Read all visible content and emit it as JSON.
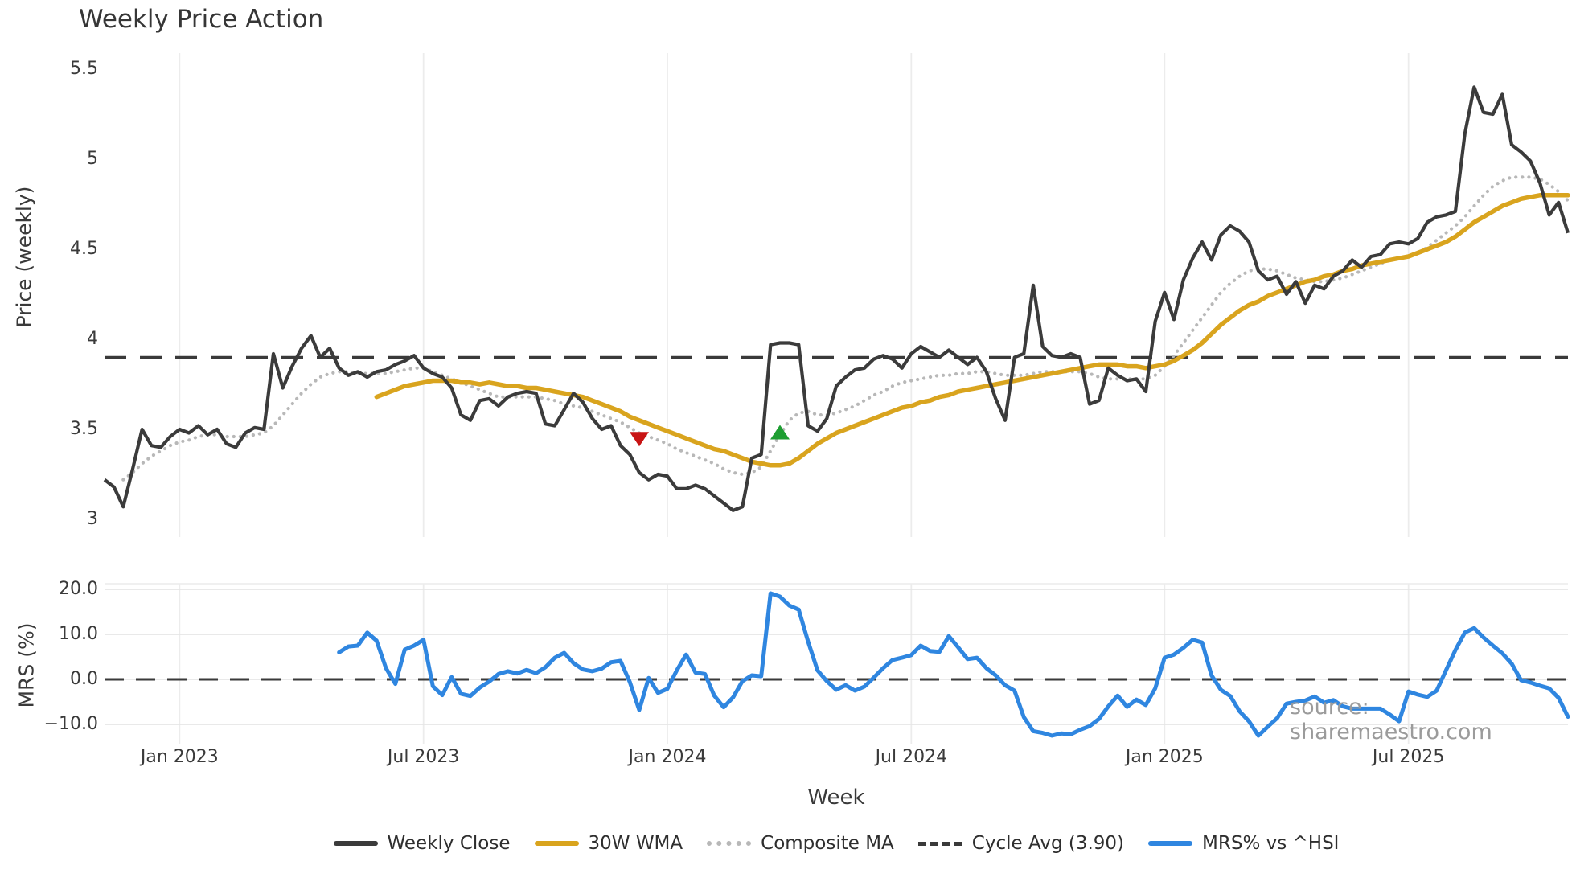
{
  "title": "Weekly Price Action",
  "watermark": "source: sharemaestro.com",
  "axes": {
    "price_ylabel": "Price (weekly)",
    "mrs_ylabel": "MRS (%)",
    "xlabel": "Week"
  },
  "colors": {
    "close": "#3b3b3b",
    "wma": "#d9a41e",
    "composite": "#b8b8b8",
    "cycle": "#3a3a3a",
    "mrs": "#2f86e0",
    "sell": "#c81414",
    "buy": "#1e9e32",
    "grid": "#ececec",
    "grid_h": "#e6e6e6",
    "text": "#3a3a3a",
    "watermark": "#9b9b9b"
  },
  "legend": [
    {
      "label": "Weekly Close",
      "style": "solid",
      "color": "#3b3b3b"
    },
    {
      "label": "30W WMA",
      "style": "solid",
      "color": "#d9a41e"
    },
    {
      "label": "Composite MA",
      "style": "dotted",
      "color": "#b8b8b8"
    },
    {
      "label": "Cycle Avg (3.90)",
      "style": "dashed",
      "color": "#3a3a3a"
    },
    {
      "label": "MRS% vs ^HSI",
      "style": "solid",
      "color": "#2f86e0"
    }
  ],
  "chart_data": [
    {
      "type": "line",
      "panel": "price",
      "title": "Weekly Price Action",
      "ylabel": "Price (weekly)",
      "ylim": [
        2.9,
        5.62
      ],
      "yticks": [
        3,
        3.5,
        4,
        4.5,
        5,
        5.5
      ],
      "ytick_labels": [
        "3",
        "3.5",
        "4",
        "4.5",
        "5",
        "5.5"
      ],
      "x_unit": "weekly, week 0 = first plotted week (Nov 2022)",
      "x_range_weeks": [
        0,
        156
      ],
      "xticks": [
        {
          "week": 8,
          "label": "Jan 2023"
        },
        {
          "week": 34,
          "label": "Jul 2023"
        },
        {
          "week": 60,
          "label": "Jan 2024"
        },
        {
          "week": 86,
          "label": "Jul 2024"
        },
        {
          "week": 113,
          "label": "Jan 2025"
        },
        {
          "week": 139,
          "label": "Jul 2025"
        }
      ],
      "cycle_avg": 3.9,
      "grid": "vertical-light",
      "legend_position": "bottom-center",
      "series": [
        {
          "name": "Weekly Close",
          "start_week": 0,
          "values": [
            3.22,
            3.18,
            3.07,
            3.28,
            3.5,
            3.41,
            3.4,
            3.46,
            3.5,
            3.48,
            3.52,
            3.47,
            3.5,
            3.42,
            3.4,
            3.48,
            3.51,
            3.5,
            3.92,
            3.73,
            3.85,
            3.95,
            4.02,
            3.9,
            3.95,
            3.84,
            3.8,
            3.82,
            3.79,
            3.82,
            3.83,
            3.86,
            3.88,
            3.91,
            3.84,
            3.81,
            3.79,
            3.73,
            3.58,
            3.55,
            3.66,
            3.67,
            3.63,
            3.68,
            3.7,
            3.71,
            3.7,
            3.53,
            3.52,
            3.61,
            3.7,
            3.65,
            3.56,
            3.5,
            3.52,
            3.41,
            3.36,
            3.26,
            3.22,
            3.25,
            3.24,
            3.17,
            3.17,
            3.19,
            3.17,
            3.13,
            3.09,
            3.05,
            3.07,
            3.34,
            3.36,
            3.97,
            3.98,
            3.98,
            3.97,
            3.52,
            3.49,
            3.56,
            3.74,
            3.79,
            3.83,
            3.84,
            3.89,
            3.91,
            3.89,
            3.84,
            3.92,
            3.96,
            3.93,
            3.9,
            3.94,
            3.9,
            3.86,
            3.9,
            3.82,
            3.67,
            3.55,
            3.9,
            3.92,
            4.3,
            3.96,
            3.91,
            3.9,
            3.92,
            3.9,
            3.64,
            3.66,
            3.84,
            3.8,
            3.77,
            3.78,
            3.71,
            4.1,
            4.26,
            4.11,
            4.33,
            4.45,
            4.54,
            4.44,
            4.58,
            4.63,
            4.6,
            4.54,
            4.38,
            4.33,
            4.35,
            4.25,
            4.32,
            4.2,
            4.3,
            4.28,
            4.35,
            4.38,
            4.44,
            4.4,
            4.46,
            4.47,
            4.53,
            4.54,
            4.53,
            4.56,
            4.65,
            4.68,
            4.69,
            4.71,
            5.14,
            5.4,
            5.26,
            5.25,
            5.36,
            5.08,
            5.04,
            4.99,
            4.87,
            4.69,
            4.76,
            4.59
          ]
        },
        {
          "name": "30W WMA",
          "start_week": 29,
          "values": [
            3.68,
            3.7,
            3.72,
            3.74,
            3.75,
            3.76,
            3.77,
            3.77,
            3.77,
            3.76,
            3.76,
            3.75,
            3.76,
            3.75,
            3.74,
            3.74,
            3.73,
            3.73,
            3.72,
            3.71,
            3.7,
            3.69,
            3.68,
            3.66,
            3.64,
            3.62,
            3.6,
            3.57,
            3.55,
            3.53,
            3.51,
            3.49,
            3.47,
            3.45,
            3.43,
            3.41,
            3.39,
            3.38,
            3.36,
            3.34,
            3.32,
            3.31,
            3.3,
            3.3,
            3.31,
            3.34,
            3.38,
            3.42,
            3.45,
            3.48,
            3.5,
            3.52,
            3.54,
            3.56,
            3.58,
            3.6,
            3.62,
            3.63,
            3.65,
            3.66,
            3.68,
            3.69,
            3.71,
            3.72,
            3.73,
            3.74,
            3.75,
            3.76,
            3.77,
            3.78,
            3.79,
            3.8,
            3.81,
            3.82,
            3.83,
            3.84,
            3.85,
            3.86,
            3.86,
            3.86,
            3.85,
            3.85,
            3.84,
            3.85,
            3.86,
            3.88,
            3.91,
            3.94,
            3.98,
            4.03,
            4.08,
            4.12,
            4.16,
            4.19,
            4.21,
            4.24,
            4.26,
            4.28,
            4.3,
            4.32,
            4.33,
            4.35,
            4.36,
            4.38,
            4.39,
            4.41,
            4.42,
            4.43,
            4.44,
            4.45,
            4.46,
            4.48,
            4.5,
            4.52,
            4.54,
            4.57,
            4.61,
            4.65,
            4.68,
            4.71,
            4.74,
            4.76,
            4.78,
            4.79,
            4.8,
            4.8,
            4.8,
            4.8
          ]
        },
        {
          "name": "Composite MA",
          "start_week": 2,
          "values": [
            3.22,
            3.26,
            3.31,
            3.35,
            3.38,
            3.41,
            3.43,
            3.44,
            3.46,
            3.47,
            3.47,
            3.46,
            3.46,
            3.46,
            3.47,
            3.48,
            3.52,
            3.58,
            3.64,
            3.7,
            3.75,
            3.79,
            3.81,
            3.82,
            3.82,
            3.81,
            3.81,
            3.81,
            3.81,
            3.82,
            3.83,
            3.84,
            3.84,
            3.82,
            3.8,
            3.78,
            3.76,
            3.74,
            3.72,
            3.7,
            3.68,
            3.68,
            3.68,
            3.68,
            3.68,
            3.67,
            3.66,
            3.64,
            3.63,
            3.62,
            3.6,
            3.58,
            3.56,
            3.54,
            3.51,
            3.48,
            3.46,
            3.44,
            3.42,
            3.39,
            3.37,
            3.35,
            3.33,
            3.31,
            3.28,
            3.26,
            3.25,
            3.26,
            3.29,
            3.38,
            3.47,
            3.55,
            3.59,
            3.6,
            3.58,
            3.58,
            3.59,
            3.61,
            3.63,
            3.66,
            3.69,
            3.71,
            3.74,
            3.76,
            3.77,
            3.78,
            3.79,
            3.8,
            3.8,
            3.81,
            3.81,
            3.82,
            3.82,
            3.81,
            3.8,
            3.8,
            3.8,
            3.81,
            3.82,
            3.82,
            3.82,
            3.82,
            3.82,
            3.81,
            3.79,
            3.78,
            3.78,
            3.78,
            3.78,
            3.78,
            3.8,
            3.85,
            3.91,
            3.98,
            4.05,
            4.12,
            4.19,
            4.26,
            4.31,
            4.35,
            4.38,
            4.39,
            4.39,
            4.38,
            4.36,
            4.34,
            4.33,
            4.32,
            4.32,
            4.33,
            4.34,
            4.36,
            4.38,
            4.4,
            4.42,
            4.44,
            4.45,
            4.46,
            4.48,
            4.51,
            4.55,
            4.59,
            4.63,
            4.68,
            4.74,
            4.8,
            4.85,
            4.88,
            4.9,
            4.9,
            4.9,
            4.89,
            4.86,
            4.82,
            4.77
          ]
        }
      ],
      "markers": [
        {
          "type": "sell",
          "shape": "triangle-down",
          "week": 57,
          "price": 3.45,
          "color": "#c81414"
        },
        {
          "type": "buy",
          "shape": "triangle-up",
          "week": 72,
          "price": 3.48,
          "color": "#1e9e32"
        }
      ]
    },
    {
      "type": "line",
      "panel": "oscillator",
      "ylabel": "MRS (%)",
      "xlabel": "Week",
      "ylim": [
        -15,
        21
      ],
      "yticks": [
        20,
        10,
        0,
        -10
      ],
      "ytick_labels": [
        "20.0",
        "10.0",
        "0.0",
        "−10.0"
      ],
      "zero_line_dashed": 0,
      "grid": "horizontal-light",
      "series": [
        {
          "name": "MRS% vs ^HSI",
          "start_week": 25,
          "values": [
            6.0,
            7.3,
            7.5,
            10.4,
            8.6,
            2.5,
            -1.0,
            6.6,
            7.5,
            8.8,
            -1.5,
            -3.5,
            0.5,
            -3.2,
            -3.7,
            -1.8,
            -0.5,
            1.2,
            1.8,
            1.3,
            2.1,
            1.4,
            2.7,
            4.8,
            5.9,
            3.6,
            2.2,
            1.8,
            2.4,
            3.8,
            4.1,
            -0.6,
            -6.8,
            0.3,
            -3.0,
            -2.1,
            2.0,
            5.5,
            1.5,
            1.2,
            -3.6,
            -6.2,
            -4.0,
            -0.4,
            0.9,
            0.7,
            19.1,
            18.4,
            16.4,
            15.5,
            8.4,
            2.0,
            -0.4,
            -2.3,
            -1.3,
            -2.5,
            -1.6,
            0.4,
            2.5,
            4.3,
            4.8,
            5.4,
            7.5,
            6.3,
            6.1,
            9.6,
            7.1,
            4.5,
            4.8,
            2.5,
            0.9,
            -1.3,
            -2.5,
            -8.4,
            -11.5,
            -11.9,
            -12.5,
            -12.0,
            -12.2,
            -11.2,
            -10.4,
            -8.8,
            -6.0,
            -3.6,
            -6.1,
            -4.5,
            -5.7,
            -2.0,
            4.8,
            5.5,
            7.0,
            8.8,
            8.2,
            0.9,
            -2.3,
            -3.7,
            -7.1,
            -9.3,
            -12.5,
            -10.5,
            -8.6,
            -5.4,
            -5.0,
            -4.7,
            -3.8,
            -5.2,
            -4.6,
            -6.0,
            -6.5,
            -6.5,
            -6.5,
            -6.5,
            -7.8,
            -9.3,
            -2.7,
            -3.4,
            -3.9,
            -2.5,
            2.0,
            6.5,
            10.4,
            11.4,
            9.3,
            7.5,
            5.8,
            3.5,
            -0.2,
            -0.7,
            -1.4,
            -2.0,
            -4.1,
            -8.3
          ]
        }
      ]
    }
  ]
}
